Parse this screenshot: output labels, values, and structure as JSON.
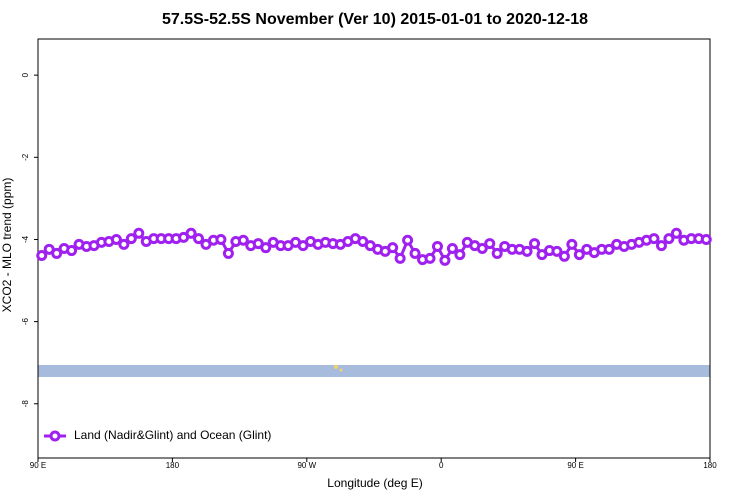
{
  "chart_data": {
    "type": "line",
    "title": "57.5S-52.5S November (Ver 10)   2015-01-01 to 2020-12-18",
    "x_label": "Longitude (deg E)",
    "y_label": "XCO2 - MLO trend (ppm)",
    "x": [
      92.5,
      97.5,
      102.5,
      107.5,
      112.5,
      117.5,
      122.5,
      127.5,
      132.5,
      137.5,
      142.5,
      147.5,
      152.5,
      157.5,
      162.5,
      167.5,
      172.5,
      177.5,
      182.5,
      187.5,
      192.5,
      197.5,
      202.5,
      207.5,
      212.5,
      217.5,
      222.5,
      227.5,
      232.5,
      237.5,
      242.5,
      247.5,
      252.5,
      257.5,
      262.5,
      267.5,
      272.5,
      277.5,
      282.5,
      287.5,
      292.5,
      297.5,
      302.5,
      307.5,
      312.5,
      317.5,
      322.5,
      327.5,
      332.5,
      337.5,
      342.5,
      347.5,
      352.5,
      357.5,
      362.5,
      367.5,
      372.5,
      377.5,
      382.5,
      387.5,
      392.5,
      397.5,
      402.5,
      407.5,
      412.5,
      417.5,
      422.5,
      427.5,
      432.5,
      437.5,
      442.5,
      447.5,
      452.5,
      457.5,
      462.5,
      467.5,
      472.5,
      477.5,
      482.5,
      487.5,
      492.5,
      497.5,
      502.5,
      507.5,
      512.5,
      517.5,
      522.5,
      527.5,
      532.5,
      537.5
    ],
    "series": [
      {
        "name": "Land (Nadir&Glint) and Ocean (Glint)",
        "color": "#a020f0",
        "values": [
          -4.39,
          -4.24,
          -4.34,
          -4.22,
          -4.27,
          -4.12,
          -4.17,
          -4.15,
          -4.07,
          -4.05,
          -4.0,
          -4.12,
          -3.98,
          -3.85,
          -4.05,
          -3.98,
          -3.98,
          -3.98,
          -3.98,
          -3.95,
          -3.85,
          -3.98,
          -4.12,
          -4.02,
          -4.0,
          -4.34,
          -4.05,
          -4.02,
          -4.15,
          -4.1,
          -4.2,
          -4.07,
          -4.15,
          -4.15,
          -4.07,
          -4.15,
          -4.05,
          -4.12,
          -4.07,
          -4.1,
          -4.12,
          -4.05,
          -3.98,
          -4.05,
          -4.15,
          -4.24,
          -4.29,
          -4.2,
          -4.46,
          -4.02,
          -4.34,
          -4.49,
          -4.46,
          -4.17,
          -4.51,
          -4.22,
          -4.37,
          -4.07,
          -4.15,
          -4.22,
          -4.1,
          -4.34,
          -4.17,
          -4.24,
          -4.24,
          -4.29,
          -4.1,
          -4.37,
          -4.27,
          -4.29,
          -4.41,
          -4.12,
          -4.37,
          -4.24,
          -4.32,
          -4.24,
          -4.24,
          -4.12,
          -4.17,
          -4.12,
          -4.07,
          -4.02,
          -3.98,
          -4.15,
          -3.98,
          -3.85,
          -4.02,
          -3.98,
          -3.98,
          -4.0
        ]
      }
    ],
    "xlim": [
      90,
      540
    ],
    "xticks": [
      {
        "value": 90,
        "label": "90 E"
      },
      180,
      {
        "value": 270,
        "label": "90 W"
      },
      {
        "value": 360,
        "label": "0"
      },
      {
        "value": 450,
        "label": "90 E"
      },
      {
        "value": 540,
        "label": "180"
      }
    ],
    "ylim": [
      -9.32,
      0.88
    ],
    "yticks": [
      0,
      -2,
      -4,
      -6,
      -8
    ],
    "legend": "bottomleft"
  }
}
